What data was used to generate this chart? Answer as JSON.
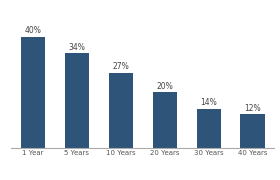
{
  "categories": [
    "1 Year",
    "5 Years",
    "10 Years",
    "20 Years",
    "30 Years",
    "40 Years"
  ],
  "values": [
    40,
    34,
    27,
    20,
    14,
    12
  ],
  "labels": [
    "40%",
    "34%",
    "27%",
    "20%",
    "14%",
    "12%"
  ],
  "bar_color": "#2E547A",
  "background_color": "#FFFFFF",
  "ylim": [
    0,
    48
  ],
  "label_fontsize": 5.5,
  "tick_fontsize": 5.0,
  "bar_width": 0.55
}
